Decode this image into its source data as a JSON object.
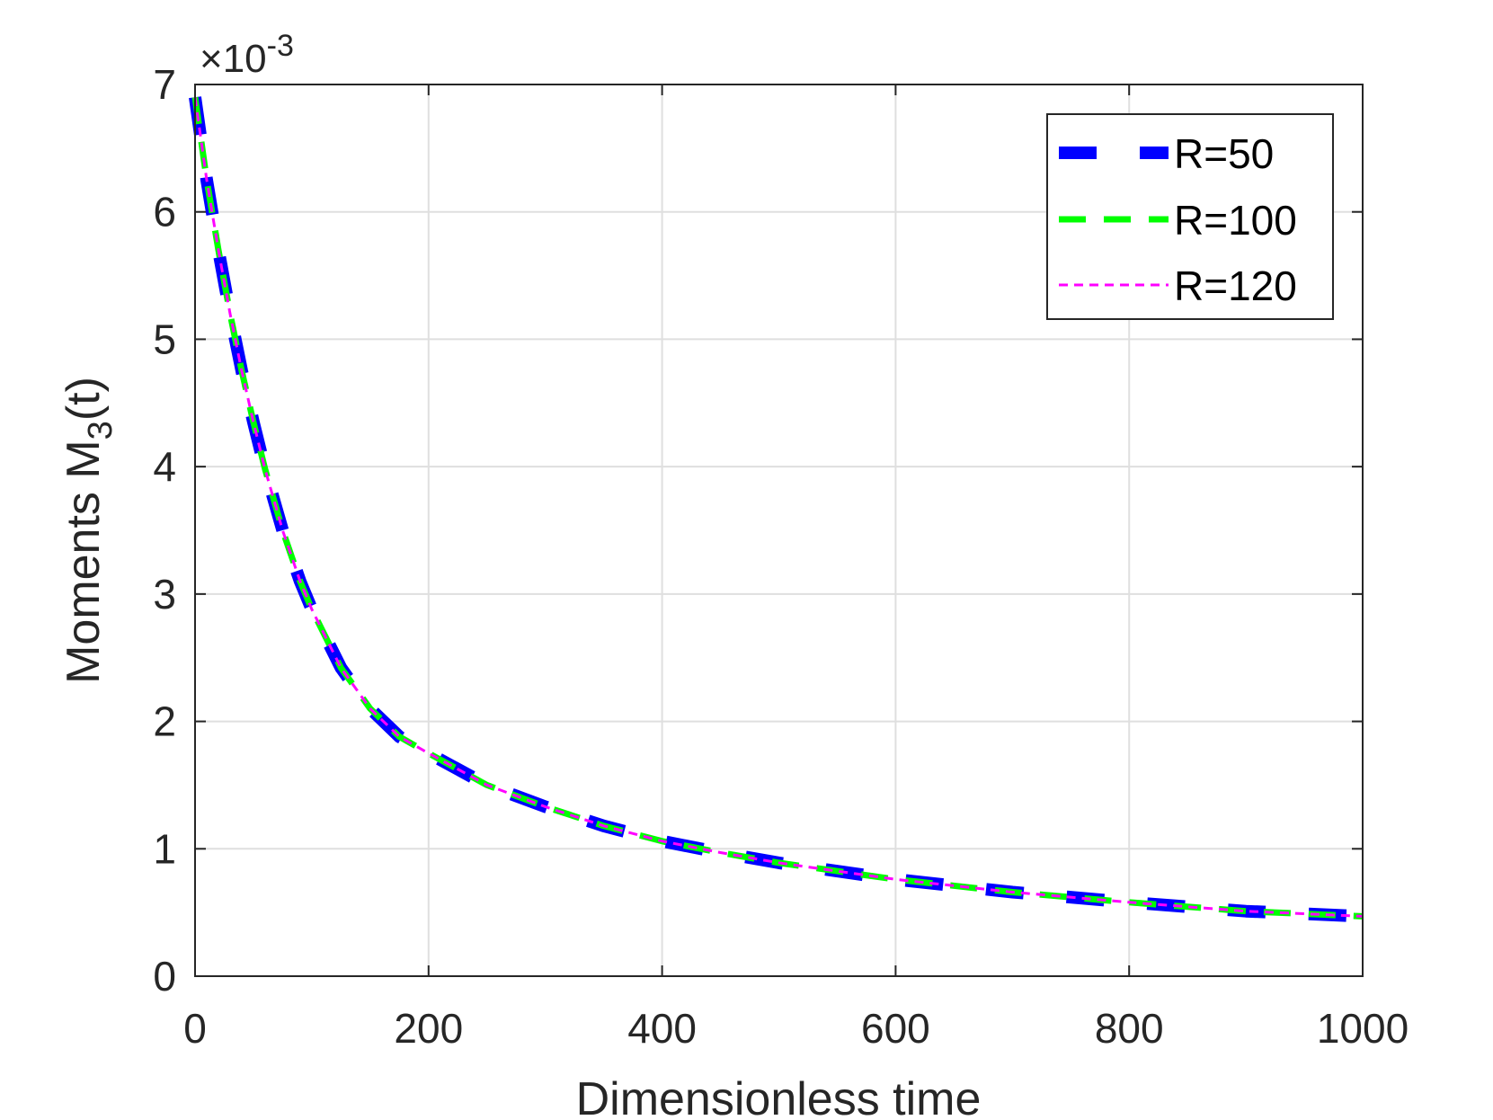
{
  "chart_data": {
    "type": "line",
    "xlabel": "Dimensionless time",
    "ylabel_main": "Moments M",
    "ylabel_sub": "3",
    "ylabel_tail": "(t)",
    "y_multiplier_prefix": "×10",
    "y_multiplier_exp": "-3",
    "xlim": [
      0,
      1000
    ],
    "ylim": [
      0,
      7
    ],
    "x_ticks": [
      "0",
      "200",
      "400",
      "600",
      "800",
      "1000"
    ],
    "y_ticks": [
      "0",
      "1",
      "2",
      "3",
      "4",
      "5",
      "6",
      "7"
    ],
    "grid": true,
    "legend_position": "top-right",
    "x": [
      0,
      10,
      20,
      30,
      40,
      50,
      60,
      75,
      90,
      100,
      125,
      150,
      175,
      200,
      250,
      300,
      350,
      400,
      450,
      500,
      600,
      700,
      800,
      900,
      1000
    ],
    "series": [
      {
        "name": "R=50",
        "color": "#0000ff",
        "style": "long-dash-thick",
        "values": [
          6.9,
          6.25,
          5.7,
          5.2,
          4.75,
          4.35,
          3.98,
          3.5,
          3.1,
          2.88,
          2.42,
          2.1,
          1.88,
          1.75,
          1.5,
          1.33,
          1.18,
          1.06,
          0.97,
          0.89,
          0.76,
          0.66,
          0.58,
          0.51,
          0.47
        ]
      },
      {
        "name": "R=100",
        "color": "#00ff00",
        "style": "dash-medium",
        "values": [
          6.9,
          6.25,
          5.7,
          5.2,
          4.75,
          4.35,
          3.98,
          3.5,
          3.1,
          2.88,
          2.42,
          2.1,
          1.88,
          1.75,
          1.5,
          1.33,
          1.18,
          1.06,
          0.97,
          0.89,
          0.76,
          0.66,
          0.58,
          0.51,
          0.47
        ]
      },
      {
        "name": "R=120",
        "color": "#ff00ff",
        "style": "short-dash-thin",
        "values": [
          6.9,
          6.25,
          5.7,
          5.2,
          4.75,
          4.35,
          3.98,
          3.5,
          3.1,
          2.88,
          2.42,
          2.1,
          1.88,
          1.75,
          1.5,
          1.33,
          1.18,
          1.06,
          0.97,
          0.89,
          0.76,
          0.66,
          0.58,
          0.51,
          0.47
        ]
      }
    ]
  }
}
